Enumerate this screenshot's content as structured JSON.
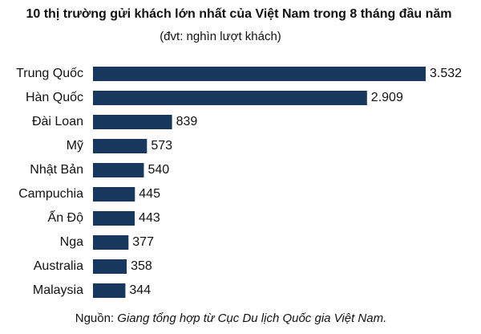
{
  "chart_data": {
    "type": "bar",
    "orientation": "horizontal",
    "title": "10 thị trường gửi khách lớn nhất của Việt Nam trong 8 tháng đầu năm",
    "subtitle": "(đvt: nghìn lượt khách)",
    "categories": [
      "Trung Quốc",
      "Hàn Quốc",
      "Đài Loan",
      "Mỹ",
      "Nhật Bản",
      "Campuchia",
      "Ấn Độ",
      "Nga",
      "Australia",
      "Malaysia"
    ],
    "values": [
      3532,
      2909,
      839,
      573,
      540,
      445,
      443,
      377,
      358,
      344
    ],
    "value_labels": [
      "3.532",
      "2.909",
      "839",
      "573",
      "540",
      "445",
      "443",
      "377",
      "358",
      "344"
    ],
    "color": "#17375e",
    "source_label": "Nguồn:",
    "source": "Giang tổng hợp từ Cục Du lịch Quốc gia Việt Nam."
  }
}
